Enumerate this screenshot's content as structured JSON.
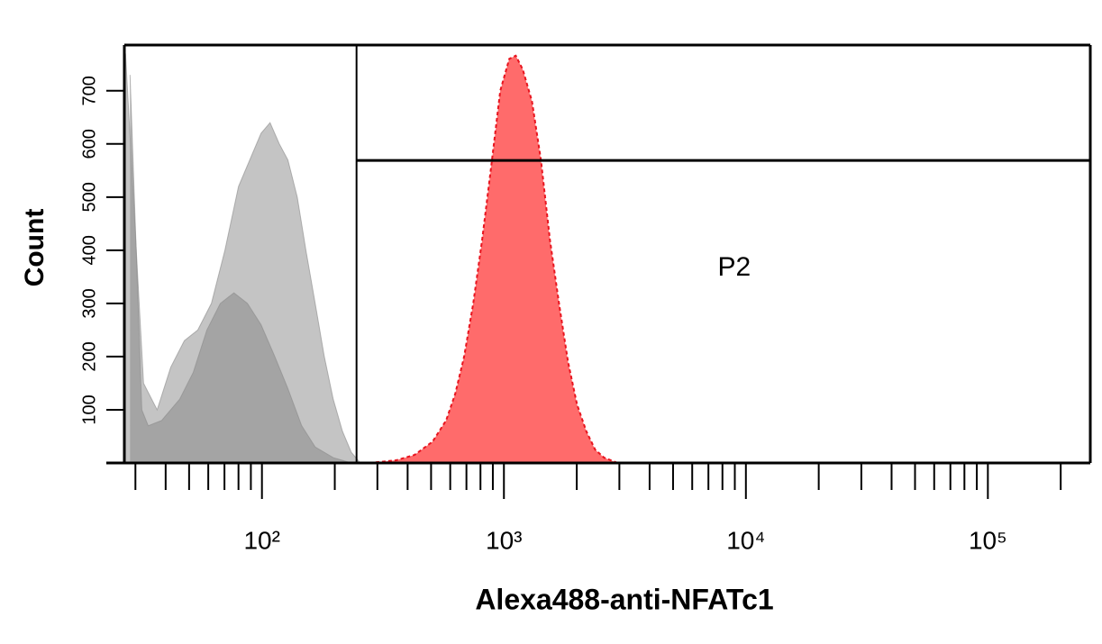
{
  "chart_data": {
    "type": "area",
    "xlabel": "Alexa488-anti-NFATc1",
    "ylabel": "Count",
    "xscale": "log",
    "xlim": [
      27,
      265000
    ],
    "ylim": [
      0,
      786
    ],
    "xticks": [
      {
        "value": 100,
        "label": "10²"
      },
      {
        "value": 1000,
        "label": "10³"
      },
      {
        "value": 10000,
        "label": "10⁴"
      },
      {
        "value": 100000,
        "label": "10⁵"
      }
    ],
    "xminor_ticks": [
      30,
      40,
      50,
      60,
      70,
      80,
      90,
      200,
      300,
      400,
      500,
      600,
      700,
      800,
      900,
      2000,
      3000,
      4000,
      5000,
      6000,
      7000,
      8000,
      9000,
      20000,
      30000,
      40000,
      50000,
      60000,
      70000,
      80000,
      90000,
      200000
    ],
    "yticks": [
      100,
      200,
      300,
      400,
      500,
      600,
      700
    ],
    "series": [
      {
        "color": "#c4c4c4",
        "x": [
          27.3,
          32.4,
          36.9,
          42.0,
          47.8,
          54.3,
          61.8,
          70.3,
          80.0,
          91.0,
          99.1,
          108,
          118,
          128,
          140,
          152,
          166,
          181,
          197,
          215,
          234,
          255
        ],
        "values": [
          770,
          150,
          100,
          180,
          230,
          250,
          300,
          400,
          520,
          580,
          620,
          640,
          600,
          570,
          500,
          400,
          300,
          200,
          120,
          60,
          20,
          0
        ]
      },
      {
        "color": "#9a9a9a",
        "x": [
          28.5,
          31.9,
          33.9,
          38.5,
          45.7,
          52.0,
          59.2,
          67.3,
          76.6,
          87.1,
          99.1,
          113,
          128,
          146,
          166,
          197,
          234
        ],
        "values": [
          730,
          100,
          70,
          80,
          120,
          170,
          250,
          300,
          320,
          300,
          260,
          200,
          140,
          70,
          30,
          10,
          0
        ]
      },
      {
        "color": "#ff6b6b",
        "x": [
          278,
          359,
          427,
          507,
          577,
          629,
          685,
          747,
          813,
          887,
          966,
          1052,
          1119,
          1197,
          1306,
          1422,
          1549,
          1690,
          1841,
          2005,
          2188,
          2382,
          2594,
          2951
        ],
        "values": [
          0,
          5,
          15,
          40,
          80,
          130,
          200,
          300,
          420,
          560,
          700,
          760,
          766,
          740,
          680,
          570,
          420,
          300,
          190,
          110,
          60,
          25,
          10,
          0
        ]
      }
    ],
    "gates": [
      {
        "label": "P2",
        "x": 246,
        "y": 569
      }
    ]
  }
}
